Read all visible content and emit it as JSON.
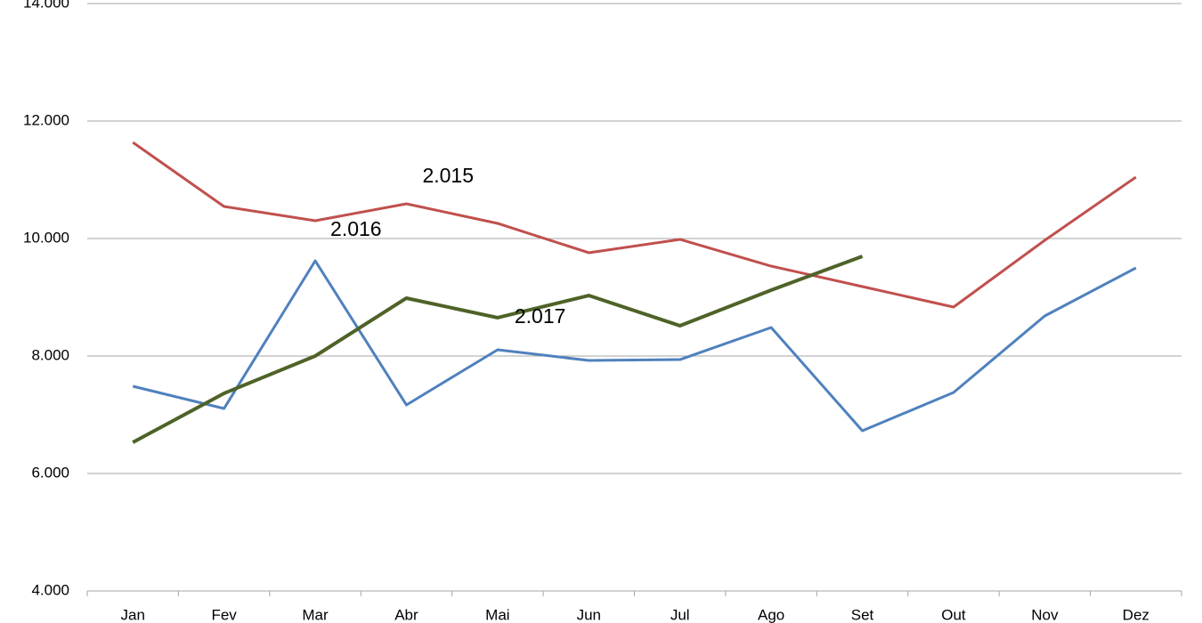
{
  "chart_data": {
    "type": "line",
    "categories": [
      "Jan",
      "Fev",
      "Mar",
      "Abr",
      "Mai",
      "Jun",
      "Jul",
      "Ago",
      "Set",
      "Out",
      "Nov",
      "Dez"
    ],
    "series": [
      {
        "name": "2.015",
        "color": "#c0504d",
        "values": [
          11636,
          10545,
          10303,
          10591,
          10258,
          9758,
          9985,
          9530,
          9182,
          8833,
          9970,
          11045
        ]
      },
      {
        "name": "2.016",
        "color": "#4f81bd",
        "values": [
          7485,
          7106,
          9621,
          7167,
          8106,
          7924,
          7939,
          8485,
          6727,
          7379,
          8682,
          9500
        ]
      },
      {
        "name": "2.017",
        "color": "#4f6228",
        "values": [
          6530,
          7364,
          8000,
          8985,
          8652,
          9030,
          8515,
          9121,
          9697,
          null,
          null,
          null
        ]
      }
    ],
    "ylim": [
      4000,
      14000
    ],
    "yticks": [
      {
        "value": 4000,
        "label": "4.000"
      },
      {
        "value": 6000,
        "label": "6.000"
      },
      {
        "value": 8000,
        "label": "8.000"
      },
      {
        "value": 10000,
        "label": "10.000"
      },
      {
        "value": 12000,
        "label": "12.000"
      },
      {
        "value": 14000,
        "label": "14.000"
      }
    ],
    "grid": true
  }
}
